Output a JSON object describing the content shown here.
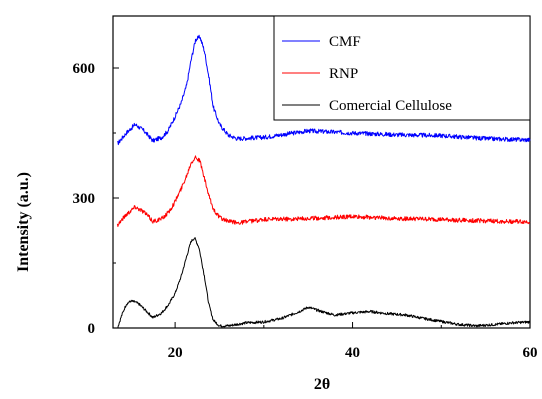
{
  "chart_data": {
    "type": "line",
    "title": "",
    "xlabel": "2θ",
    "ylabel": "Intensity (a.u.)",
    "xlim": [
      13,
      60
    ],
    "ylim": [
      0,
      720
    ],
    "x_ticks": [
      20,
      40,
      60
    ],
    "x_tick_labels": [
      "20",
      "40",
      "60"
    ],
    "y_ticks": [
      0,
      300,
      600
    ],
    "y_tick_labels": [
      "0",
      "300",
      "600"
    ],
    "legend": {
      "position": "top-right",
      "frame": true
    },
    "series": [
      {
        "name": "CMF",
        "color": "#0000ff",
        "x": [
          13.5,
          14.5,
          15.5,
          16.5,
          17.5,
          18.5,
          19.2,
          20.0,
          20.7,
          21.3,
          21.8,
          22.3,
          22.8,
          23.3,
          23.8,
          24.3,
          25.0,
          26.0,
          27.0,
          30.0,
          35.0,
          40.0,
          45.0,
          50.0,
          55.0,
          60.0
        ],
        "y": [
          425,
          450,
          470,
          455,
          432,
          440,
          455,
          488,
          520,
          560,
          618,
          665,
          672,
          640,
          580,
          510,
          470,
          445,
          437,
          440,
          455,
          450,
          446,
          444,
          437,
          434
        ]
      },
      {
        "name": "RNP",
        "color": "#ff0000",
        "x": [
          13.5,
          14.5,
          15.5,
          16.5,
          17.5,
          18.5,
          19.3,
          20.0,
          20.7,
          21.3,
          21.8,
          22.3,
          22.8,
          23.3,
          23.8,
          24.3,
          25.0,
          26.0,
          27.0,
          30.0,
          35.0,
          40.0,
          45.0,
          50.0,
          55.0,
          60.0
        ],
        "y": [
          238,
          262,
          280,
          268,
          246,
          252,
          268,
          292,
          322,
          352,
          382,
          395,
          385,
          345,
          305,
          275,
          255,
          246,
          243,
          250,
          253,
          257,
          253,
          250,
          247,
          245
        ]
      },
      {
        "name": "Comercial Cellulose",
        "color": "#000000",
        "x": [
          13.5,
          14.0,
          14.5,
          15.0,
          15.5,
          16.0,
          16.7,
          17.5,
          18.5,
          19.3,
          20.0,
          20.7,
          21.3,
          21.8,
          22.2,
          22.7,
          23.3,
          23.8,
          24.3,
          25.0,
          26.0,
          28.0,
          30.0,
          32.0,
          34.0,
          35.0,
          36.5,
          38.0,
          40.0,
          42.0,
          44.0,
          46.0,
          48.0,
          50.0,
          52.0,
          54.0,
          56.0,
          58.0,
          60.0
        ],
        "y": [
          0,
          30,
          55,
          62,
          60,
          54,
          40,
          24,
          35,
          55,
          80,
          120,
          165,
          200,
          208,
          185,
          120,
          55,
          18,
          5,
          5,
          12,
          14,
          22,
          38,
          48,
          38,
          30,
          35,
          38,
          33,
          30,
          22,
          15,
          8,
          5,
          8,
          12,
          14
        ]
      }
    ]
  }
}
